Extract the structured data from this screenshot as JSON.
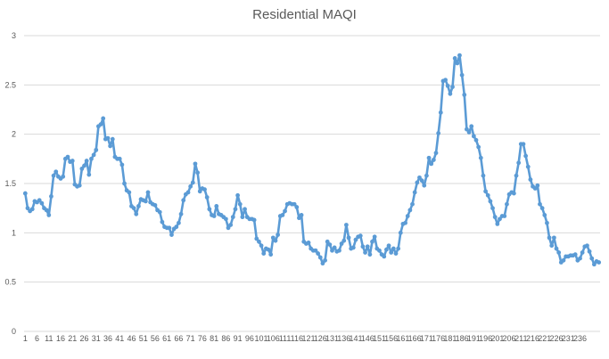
{
  "chart_data": {
    "type": "line",
    "title": "Residential MAQI",
    "xlabel": "",
    "ylabel": "",
    "ylim": [
      0,
      3
    ],
    "yticks": [
      "0",
      "0.5",
      "1",
      "1.5",
      "2",
      "2.5",
      "3"
    ],
    "xtick_labels": [
      "1",
      "6",
      "11",
      "16",
      "21",
      "26",
      "31",
      "36",
      "41",
      "46",
      "51",
      "56",
      "61",
      "66",
      "71",
      "76",
      "81",
      "86",
      "91",
      "96",
      "101",
      "106",
      "111",
      "116",
      "121",
      "126",
      "131",
      "136",
      "141",
      "146",
      "151",
      "156",
      "161",
      "166",
      "171",
      "176",
      "181",
      "186",
      "191",
      "196",
      "201",
      "206",
      "211",
      "216",
      "221",
      "226",
      "231",
      "236"
    ],
    "grid": "horizontal",
    "legend": "none",
    "series_color": "#5b9bd5",
    "series": [
      {
        "name": "",
        "values": [
          1.4,
          1.25,
          1.22,
          1.24,
          1.32,
          1.31,
          1.33,
          1.3,
          1.25,
          1.23,
          1.18,
          1.37,
          1.58,
          1.62,
          1.57,
          1.55,
          1.57,
          1.75,
          1.77,
          1.72,
          1.73,
          1.49,
          1.47,
          1.48,
          1.65,
          1.68,
          1.73,
          1.59,
          1.75,
          1.79,
          1.84,
          2.08,
          2.1,
          2.16,
          1.95,
          1.96,
          1.88,
          1.95,
          1.77,
          1.75,
          1.75,
          1.69,
          1.5,
          1.43,
          1.41,
          1.27,
          1.25,
          1.19,
          1.27,
          1.34,
          1.33,
          1.32,
          1.41,
          1.31,
          1.29,
          1.28,
          1.23,
          1.21,
          1.11,
          1.06,
          1.05,
          1.05,
          0.98,
          1.04,
          1.06,
          1.1,
          1.19,
          1.33,
          1.39,
          1.41,
          1.47,
          1.51,
          1.7,
          1.61,
          1.42,
          1.45,
          1.44,
          1.36,
          1.24,
          1.18,
          1.17,
          1.27,
          1.19,
          1.18,
          1.16,
          1.14,
          1.05,
          1.08,
          1.16,
          1.24,
          1.38,
          1.29,
          1.16,
          1.24,
          1.16,
          1.14,
          1.14,
          1.13,
          0.94,
          0.91,
          0.87,
          0.79,
          0.84,
          0.83,
          0.78,
          0.95,
          0.92,
          0.98,
          1.17,
          1.18,
          1.22,
          1.29,
          1.3,
          1.29,
          1.29,
          1.26,
          1.15,
          1.18,
          0.91,
          0.89,
          0.9,
          0.84,
          0.82,
          0.82,
          0.79,
          0.75,
          0.69,
          0.72,
          0.91,
          0.88,
          0.82,
          0.85,
          0.81,
          0.82,
          0.89,
          0.92,
          1.08,
          0.95,
          0.84,
          0.85,
          0.93,
          0.96,
          0.97,
          0.86,
          0.8,
          0.86,
          0.78,
          0.91,
          0.96,
          0.84,
          0.82,
          0.78,
          0.76,
          0.83,
          0.87,
          0.8,
          0.84,
          0.79,
          0.84,
          1.0,
          1.09,
          1.1,
          1.17,
          1.23,
          1.29,
          1.41,
          1.51,
          1.56,
          1.53,
          1.48,
          1.58,
          1.76,
          1.7,
          1.74,
          1.81,
          2.01,
          2.22,
          2.54,
          2.55,
          2.49,
          2.41,
          2.48,
          2.77,
          2.72,
          2.8,
          2.6,
          2.4,
          2.05,
          2.02,
          2.08,
          1.98,
          1.94,
          1.87,
          1.76,
          1.58,
          1.42,
          1.38,
          1.32,
          1.25,
          1.16,
          1.09,
          1.14,
          1.17,
          1.17,
          1.29,
          1.39,
          1.41,
          1.4,
          1.58,
          1.71,
          1.9,
          1.9,
          1.78,
          1.67,
          1.54,
          1.47,
          1.45,
          1.48,
          1.29,
          1.25,
          1.18,
          1.1,
          0.95,
          0.87,
          0.95,
          0.84,
          0.8,
          0.7,
          0.72,
          0.76,
          0.76,
          0.77,
          0.77,
          0.78,
          0.72,
          0.74,
          0.8,
          0.86,
          0.87,
          0.81,
          0.74,
          0.68,
          0.71,
          0.7
        ]
      }
    ]
  }
}
